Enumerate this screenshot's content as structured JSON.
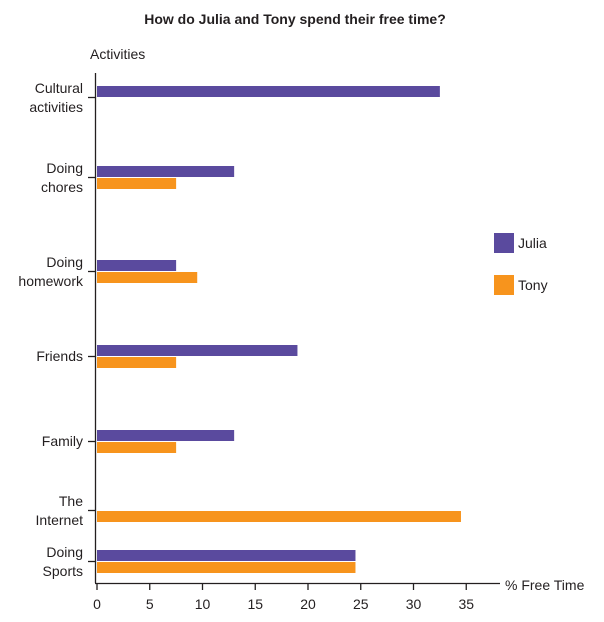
{
  "colors": {
    "julia": "#5a4a9e",
    "tony": "#f7941d",
    "axis": "#231f20"
  },
  "chart_data": {
    "type": "bar",
    "orientation": "horizontal",
    "title": "How do Julia and Tony spend their free time?",
    "ylabel": "Activities",
    "xlabel": "% Free Time",
    "xlim": [
      0,
      37
    ],
    "xticks": [
      "0",
      "5",
      "10",
      "15",
      "20",
      "25",
      "30",
      "35"
    ],
    "categories": [
      [
        "Cultural",
        "activities"
      ],
      [
        "Doing",
        "chores"
      ],
      [
        "Doing",
        "homework"
      ],
      [
        "Friends"
      ],
      [
        "Family"
      ],
      [
        "The",
        "Internet"
      ],
      [
        "Doing",
        "Sports"
      ]
    ],
    "series": [
      {
        "name": "Julia",
        "values": [
          32.5,
          13,
          7.5,
          19,
          13,
          0,
          24.5
        ]
      },
      {
        "name": "Tony",
        "values": [
          0,
          7.5,
          9.5,
          7.5,
          7.5,
          34.5,
          24.5
        ]
      }
    ],
    "grid": false,
    "legend_position": "right"
  }
}
